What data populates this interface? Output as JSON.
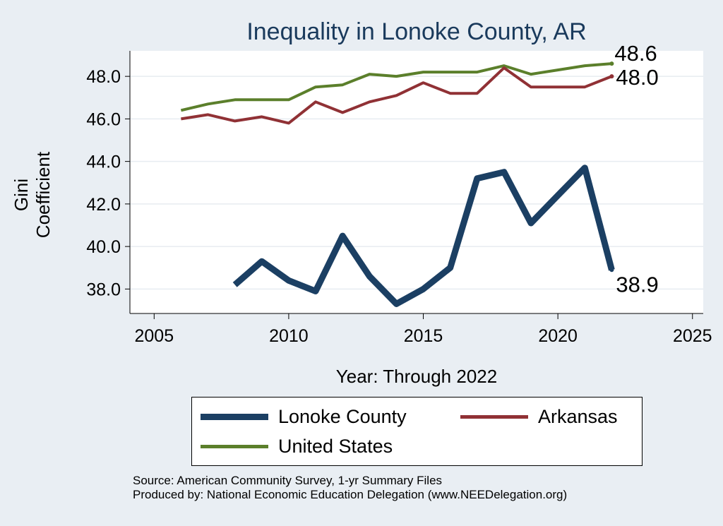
{
  "chart_data": {
    "type": "line",
    "title": "Inequality in Lonoke County, AR",
    "xlabel": "Year: Through 2022",
    "ylabel": "Gini Coefficient",
    "xlim": [
      2004.1,
      2025.4
    ],
    "ylim": [
      36.85,
      49.2
    ],
    "x_ticks": [
      2005,
      2010,
      2015,
      2020,
      2025
    ],
    "y_ticks": [
      38.0,
      40.0,
      42.0,
      44.0,
      46.0,
      48.0
    ],
    "series": [
      {
        "name": "Lonoke County",
        "color": "#1b3f63",
        "x": [
          2008,
          2009,
          2010,
          2011,
          2012,
          2013,
          2014,
          2015,
          2016,
          2017,
          2018,
          2019,
          2020,
          2021,
          2022
        ],
        "values": [
          38.2,
          39.3,
          38.4,
          37.9,
          40.5,
          38.6,
          37.3,
          38.0,
          39.0,
          43.2,
          43.5,
          41.1,
          42.4,
          43.7,
          38.9
        ],
        "end_label": "38.9"
      },
      {
        "name": "Arkansas",
        "color": "#903135",
        "x": [
          2006,
          2007,
          2008,
          2009,
          2010,
          2011,
          2012,
          2013,
          2014,
          2015,
          2016,
          2017,
          2018,
          2019,
          2020,
          2021,
          2022
        ],
        "values": [
          46.0,
          46.2,
          45.9,
          46.1,
          45.8,
          46.8,
          46.3,
          46.8,
          47.1,
          47.7,
          47.2,
          47.2,
          48.4,
          47.5,
          47.5,
          47.5,
          48.0
        ],
        "end_label": "48.0"
      },
      {
        "name": "United States",
        "color": "#5b7f2b",
        "x": [
          2006,
          2007,
          2008,
          2009,
          2010,
          2011,
          2012,
          2013,
          2014,
          2015,
          2016,
          2017,
          2018,
          2019,
          2020,
          2021,
          2022
        ],
        "values": [
          46.4,
          46.7,
          46.9,
          46.9,
          46.9,
          47.5,
          47.6,
          48.1,
          48.0,
          48.2,
          48.2,
          48.2,
          48.5,
          48.1,
          48.3,
          48.5,
          48.6
        ],
        "end_label": "48.6"
      }
    ],
    "legend": {
      "position": "bottom",
      "entries": [
        "Lonoke County",
        "Arkansas",
        "United States"
      ]
    }
  },
  "source_line1": "Source: American Community Survey, 1-yr Summary Files",
  "source_line2": "Produced by: National Economic Education Delegation (www.NEEDelegation.org)"
}
